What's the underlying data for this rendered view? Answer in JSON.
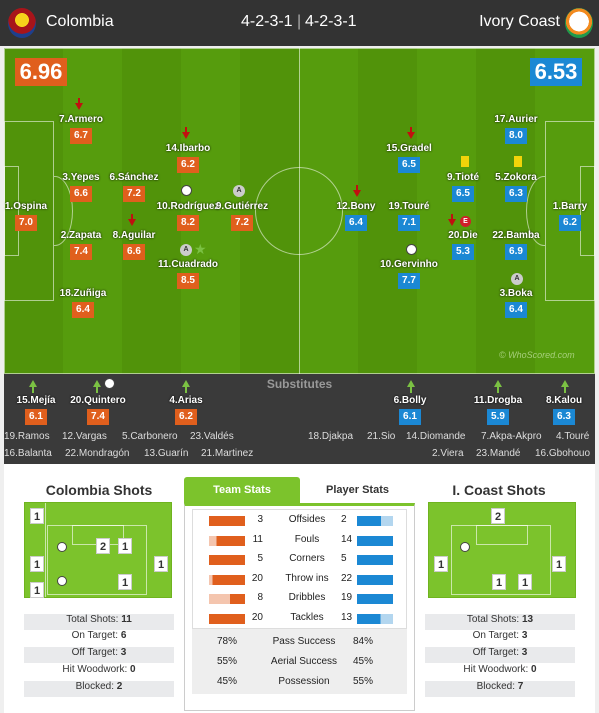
{
  "header": {
    "home_team": "Colombia",
    "away_team": "Ivory Coast",
    "home_formation": "4-2-3-1",
    "away_formation": "4-2-3-1",
    "separator": "|"
  },
  "colors": {
    "home": "#e05f1d",
    "away": "#1b88d4",
    "pitch": "#51930a",
    "sub_arrow": "#7bc143",
    "off_arrow": "#c01010"
  },
  "pitch": {
    "home_rating": "6.96",
    "away_rating": "6.53",
    "watermark": "© WhoScored.com",
    "home_players": [
      {
        "name": "7.Armero",
        "rating": "6.7"
      },
      {
        "name": "14.Ibarbo",
        "rating": "6.2"
      },
      {
        "name": "3.Yepes",
        "rating": "6.6"
      },
      {
        "name": "6.Sánchez",
        "rating": "7.2"
      },
      {
        "name": "1.Ospina",
        "rating": "7.0"
      },
      {
        "name": "10.Rodríguez",
        "rating": "8.2"
      },
      {
        "name": "9.Gutiérrez",
        "rating": "7.2"
      },
      {
        "name": "2.Zapata",
        "rating": "7.4"
      },
      {
        "name": "8.Aguilar",
        "rating": "6.6"
      },
      {
        "name": "11.Cuadrado",
        "rating": "8.5"
      },
      {
        "name": "18.Zuñiga",
        "rating": "6.4"
      }
    ],
    "away_players": [
      {
        "name": "17.Aurier",
        "rating": "8.0"
      },
      {
        "name": "15.Gradel",
        "rating": "6.5"
      },
      {
        "name": "9.Tioté",
        "rating": "6.5"
      },
      {
        "name": "5.Zokora",
        "rating": "6.3"
      },
      {
        "name": "12.Bony",
        "rating": "6.4"
      },
      {
        "name": "19.Touré",
        "rating": "7.1"
      },
      {
        "name": "1.Barry",
        "rating": "6.2"
      },
      {
        "name": "20.Die",
        "rating": "5.3"
      },
      {
        "name": "22.Bamba",
        "rating": "6.9"
      },
      {
        "name": "10.Gervinho",
        "rating": "7.7"
      },
      {
        "name": "3.Boka",
        "rating": "6.4"
      }
    ]
  },
  "substitutes": {
    "title": "Substitutes",
    "home_used": [
      {
        "name": "15.Mejía",
        "rating": "6.1"
      },
      {
        "name": "20.Quintero",
        "rating": "7.4"
      },
      {
        "name": "4.Arias",
        "rating": "6.2"
      }
    ],
    "away_used": [
      {
        "name": "6.Bolly",
        "rating": "6.1"
      },
      {
        "name": "11.Drogba",
        "rating": "5.9"
      },
      {
        "name": "8.Kalou",
        "rating": "6.3"
      }
    ],
    "home_bench": [
      "19.Ramos",
      "12.Vargas",
      "5.Carbonero",
      "23.Valdés",
      "16.Balanta",
      "22.Mondragón",
      "13.Guarín",
      "21.Martinez"
    ],
    "away_bench": [
      "18.Djakpa",
      "21.Sio",
      "14.Diomande",
      "7.Akpa-Akpro",
      "4.Touré",
      "2.Viera",
      "23.Mandé",
      "16.Gbohouo"
    ]
  },
  "home_shots": {
    "title": "Colombia Shots",
    "zone_counts": [
      "1",
      "2",
      "1",
      "1",
      "1",
      "1",
      "1"
    ],
    "rows": [
      {
        "label": "Total Shots:",
        "value": "11"
      },
      {
        "label": "On Target:",
        "value": "6"
      },
      {
        "label": "Off Target:",
        "value": "3"
      },
      {
        "label": "Hit Woodwork:",
        "value": "0"
      },
      {
        "label": "Blocked:",
        "value": "2"
      }
    ]
  },
  "away_shots": {
    "title": "I. Coast Shots",
    "zone_counts": [
      "2",
      "1",
      "1",
      "1",
      "1"
    ],
    "rows": [
      {
        "label": "Total Shots:",
        "value": "13"
      },
      {
        "label": "On Target:",
        "value": "3"
      },
      {
        "label": "Off Target:",
        "value": "3"
      },
      {
        "label": "Hit Woodwork:",
        "value": "0"
      },
      {
        "label": "Blocked:",
        "value": "7"
      }
    ]
  },
  "team_stats": {
    "tab_team": "Team Stats",
    "tab_player": "Player Stats",
    "rows": [
      {
        "label": "Offsides",
        "home": "3",
        "away": "2",
        "home_num": 3,
        "away_num": 2
      },
      {
        "label": "Fouls",
        "home": "11",
        "away": "14",
        "home_num": 11,
        "away_num": 14
      },
      {
        "label": "Corners",
        "home": "5",
        "away": "5",
        "home_num": 5,
        "away_num": 5
      },
      {
        "label": "Throw ins",
        "home": "20",
        "away": "22",
        "home_num": 20,
        "away_num": 22
      },
      {
        "label": "Dribbles",
        "home": "8",
        "away": "19",
        "home_num": 8,
        "away_num": 19
      },
      {
        "label": "Tackles",
        "home": "20",
        "away": "13",
        "home_num": 20,
        "away_num": 13
      }
    ],
    "pct_rows": [
      {
        "label": "Pass Success",
        "home": "78%",
        "away": "84%"
      },
      {
        "label": "Aerial Success",
        "home": "55%",
        "away": "45%"
      },
      {
        "label": "Possession",
        "home": "45%",
        "away": "55%"
      }
    ]
  }
}
